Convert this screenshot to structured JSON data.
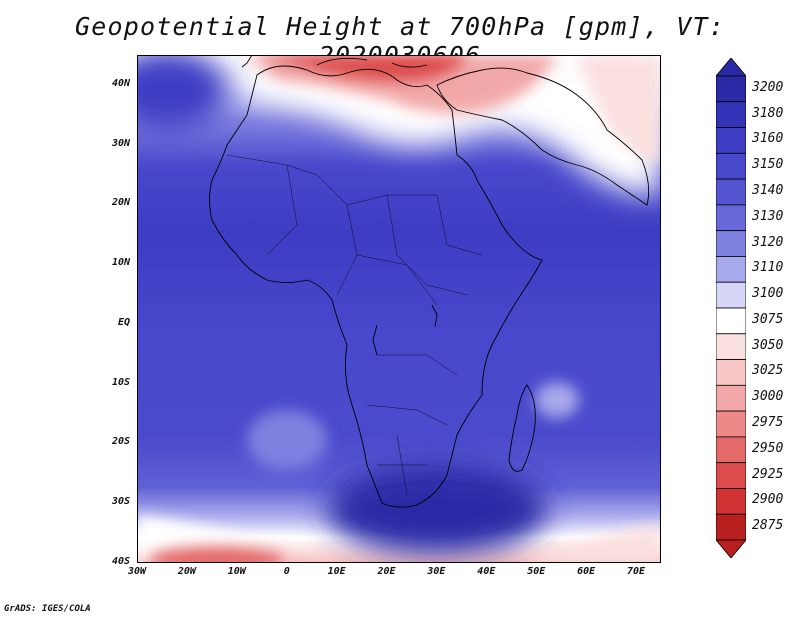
{
  "title": "Geopotential Height at 700hPa [gpm], VT: 2020030606",
  "footer": "GrADS: IGES/COLA",
  "map": {
    "lon_range": [
      -30,
      75
    ],
    "lat_range": [
      -40,
      45
    ],
    "lat_labels": [
      {
        "text": "40N",
        "lat": 40
      },
      {
        "text": "30N",
        "lat": 30
      },
      {
        "text": "20N",
        "lat": 20
      },
      {
        "text": "10N",
        "lat": 10
      },
      {
        "text": "EQ",
        "lat": 0
      },
      {
        "text": "10S",
        "lat": -10
      },
      {
        "text": "20S",
        "lat": -20
      },
      {
        "text": "30S",
        "lat": -30
      },
      {
        "text": "40S",
        "lat": -40
      }
    ],
    "lon_labels": [
      {
        "text": "30W",
        "lon": -30
      },
      {
        "text": "20W",
        "lon": -20
      },
      {
        "text": "10W",
        "lon": -10
      },
      {
        "text": "0",
        "lon": 0
      },
      {
        "text": "10E",
        "lon": 10
      },
      {
        "text": "20E",
        "lon": 20
      },
      {
        "text": "30E",
        "lon": 30
      },
      {
        "text": "40E",
        "lon": 40
      },
      {
        "text": "50E",
        "lon": 50
      },
      {
        "text": "60E",
        "lon": 60
      },
      {
        "text": "70E",
        "lon": 70
      }
    ]
  },
  "colorbar": {
    "levels": [
      "3200",
      "3180",
      "3160",
      "3150",
      "3140",
      "3130",
      "3120",
      "3110",
      "3100",
      "3075",
      "3050",
      "3025",
      "3000",
      "2975",
      "2950",
      "2925",
      "2900",
      "2875"
    ],
    "colors": [
      "#2a2aa6",
      "#3333b8",
      "#3d3dc4",
      "#4848cc",
      "#5555d2",
      "#6868d8",
      "#8080e0",
      "#a8a8ec",
      "#d6d6f6",
      "#ffffff",
      "#fbe0e0",
      "#f7c6c6",
      "#f2a8a8",
      "#ec8a8a",
      "#e46a6a",
      "#dc4c4c",
      "#d03333",
      "#b82020"
    ]
  }
}
